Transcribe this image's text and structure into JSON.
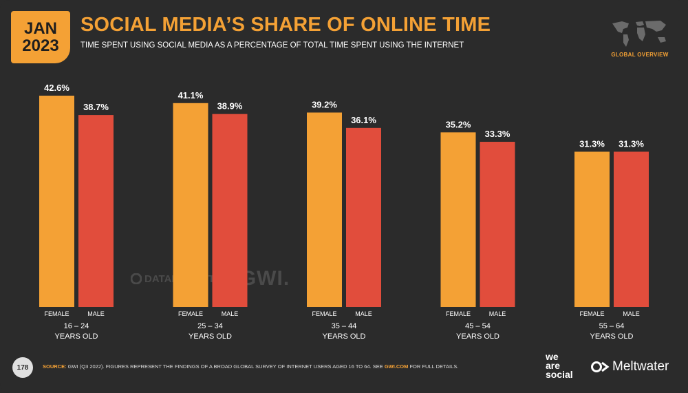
{
  "badge": {
    "month": "JAN",
    "year": "2023"
  },
  "header": {
    "title": "SOCIAL MEDIA’S SHARE OF ONLINE TIME",
    "subtitle": "TIME SPENT USING SOCIAL MEDIA AS A PERCENTAGE OF TOTAL TIME SPENT USING THE INTERNET",
    "global_label": "GLOBAL OVERVIEW",
    "map_icon": "world-map-icon"
  },
  "watermark": {
    "datareportal": "DATAREPORTAL",
    "gwi": "GWI."
  },
  "chart_data": {
    "type": "bar",
    "categories": [
      "16 – 24",
      "25 – 34",
      "35 – 44",
      "45 – 54",
      "55 – 64"
    ],
    "category_sublabel": "YEARS OLD",
    "series": [
      {
        "name": "FEMALE",
        "color": "#f4a135",
        "values": [
          42.6,
          41.1,
          39.2,
          35.2,
          31.3
        ]
      },
      {
        "name": "MALE",
        "color": "#e14d3c",
        "values": [
          38.7,
          38.9,
          36.1,
          33.3,
          31.3
        ]
      }
    ],
    "value_suffix": "%",
    "title": "SOCIAL MEDIA’S SHARE OF ONLINE TIME",
    "xlabel": "",
    "ylabel": "",
    "ylim": [
      0,
      42.6
    ],
    "grid": false,
    "legend": "none"
  },
  "footer": {
    "page_number": "178",
    "source_key": "SOURCE:",
    "source_text": " GWI (Q3 2022). FIGURES REPRESENT THE FINDINGS OF A BROAD GLOBAL SURVEY OF INTERNET USERS AGED 16 TO 64. SEE ",
    "source_link": "GWI.COM",
    "source_tail": " FOR FULL DETAILS.",
    "brand1_line1": "we",
    "brand1_line2": "are",
    "brand1_line3": "social",
    "brand2": "Meltwater"
  }
}
